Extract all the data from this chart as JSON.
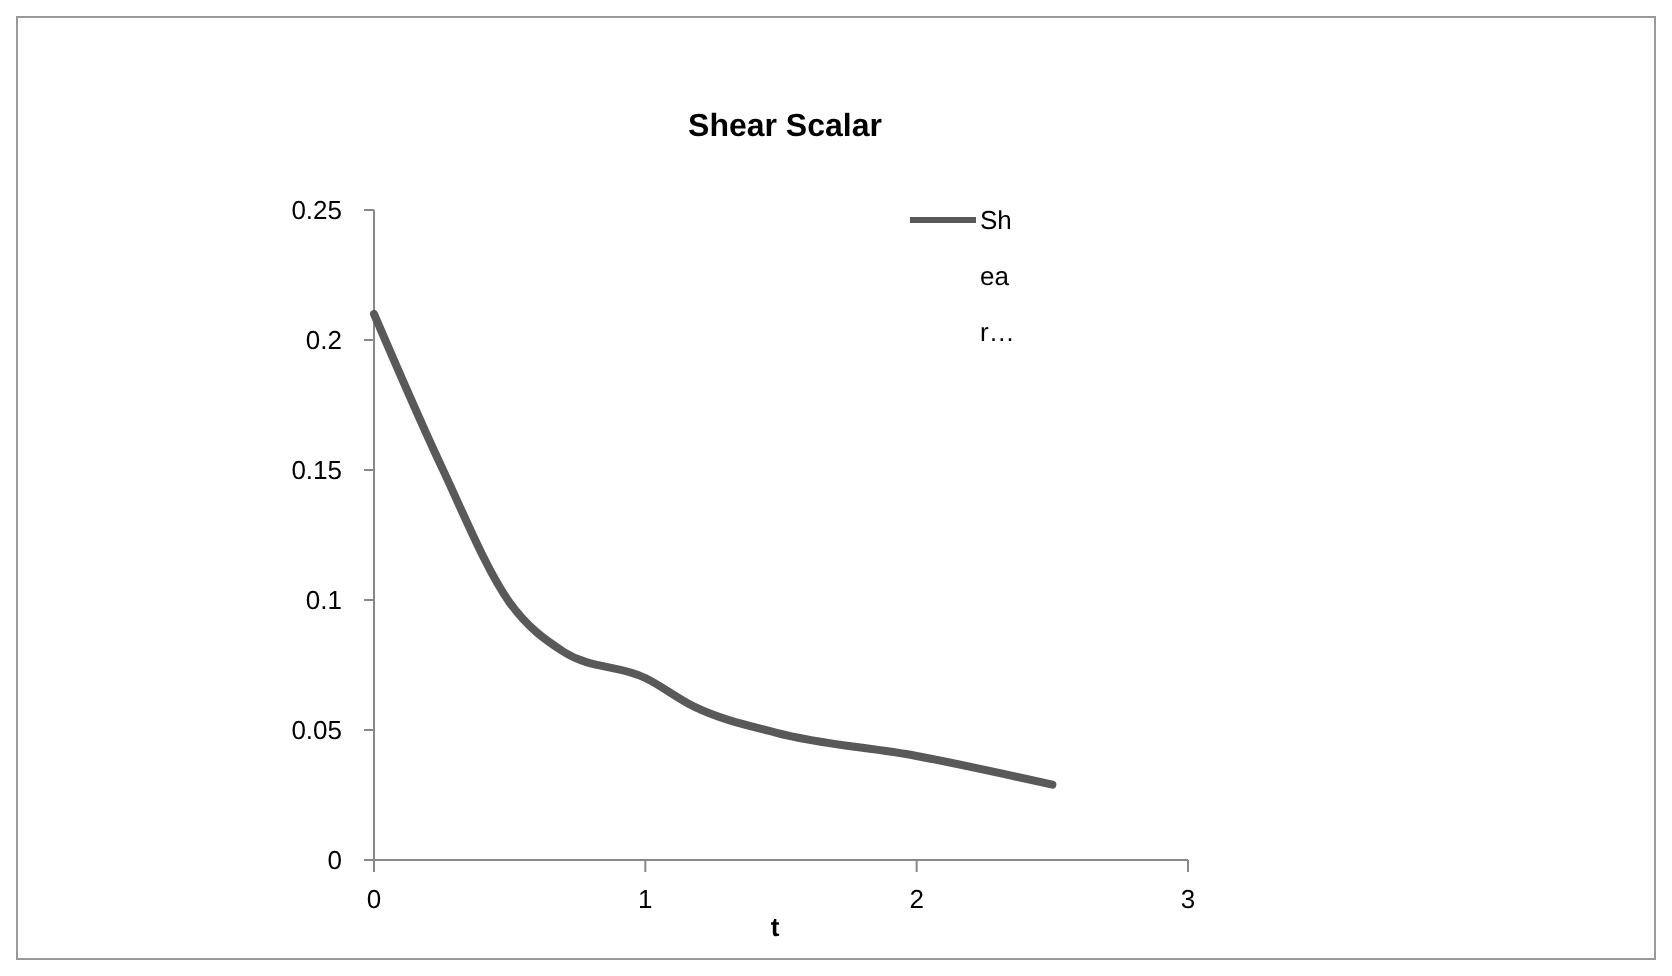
{
  "chart_data": {
    "type": "line",
    "title": "Shear Scalar",
    "xlabel": "t",
    "x": [
      0,
      0.25,
      0.5,
      0.7,
      1,
      1.18,
      1.48,
      2,
      2.5
    ],
    "series": [
      {
        "name": "Shear…",
        "color": "#595959",
        "values": [
          0.21,
          0.151,
          0.099,
          0.08,
          0.07,
          0.059,
          0.049,
          0.04,
          0.029
        ]
      }
    ],
    "xlim": [
      0,
      3
    ],
    "xticks": [
      0,
      1,
      2,
      3
    ],
    "ylim": [
      0,
      0.25
    ],
    "yticks": [
      0,
      0.05,
      0.1,
      0.15,
      0.2,
      0.25
    ],
    "grid": false,
    "legend": "top right",
    "marker": "none",
    "line_style": "solid"
  }
}
